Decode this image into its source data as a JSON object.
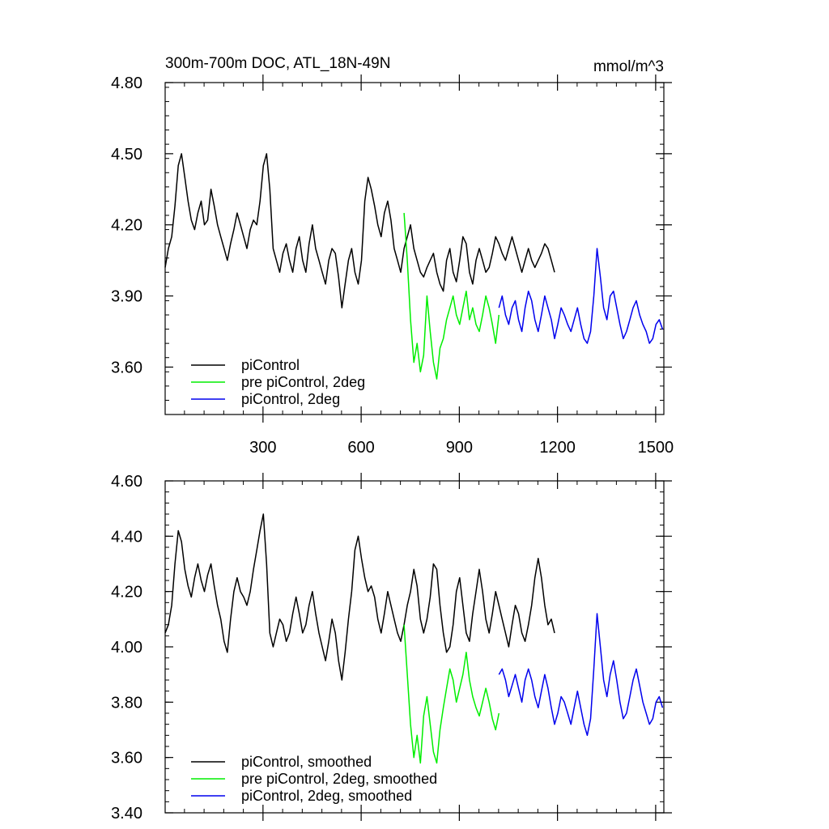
{
  "figure": {
    "title_left": "300m-700m DOC, ATL_18N-49N",
    "title_right": "mmol/m^3"
  },
  "chart_data": [
    {
      "type": "line",
      "panel": "top",
      "title": "300m-700m DOC, ATL_18N-49N",
      "units_label": "mmol/m^3",
      "xlim": [
        1,
        1525
      ],
      "ylim": [
        3.4,
        4.8
      ],
      "x_ticks": [
        300,
        600,
        900,
        1200,
        1500
      ],
      "x_tick_labels": [
        "300",
        "600",
        "900",
        "1200",
        "1500"
      ],
      "y_ticks": [
        3.6,
        3.9,
        4.2,
        4.5,
        4.8
      ],
      "y_tick_labels": [
        "3.60",
        "3.90",
        "4.20",
        "4.50",
        "4.80"
      ],
      "legend_position": "bottom-left",
      "series": [
        {
          "name": "piControl",
          "color": "#000000",
          "x_start": 1,
          "x_step": 10,
          "values": [
            4.02,
            4.1,
            4.15,
            4.28,
            4.45,
            4.5,
            4.4,
            4.3,
            4.22,
            4.18,
            4.25,
            4.3,
            4.2,
            4.22,
            4.35,
            4.28,
            4.2,
            4.15,
            4.1,
            4.05,
            4.12,
            4.18,
            4.25,
            4.2,
            4.15,
            4.1,
            4.18,
            4.22,
            4.2,
            4.3,
            4.45,
            4.5,
            4.35,
            4.1,
            4.05,
            4.0,
            4.08,
            4.12,
            4.05,
            4.0,
            4.1,
            4.15,
            4.05,
            4.0,
            4.12,
            4.2,
            4.1,
            4.05,
            4.0,
            3.95,
            4.05,
            4.1,
            4.08,
            3.98,
            3.85,
            3.95,
            4.05,
            4.1,
            4.0,
            3.95,
            4.05,
            4.3,
            4.4,
            4.35,
            4.28,
            4.2,
            4.15,
            4.25,
            4.3,
            4.22,
            4.1,
            4.05,
            4.0,
            4.1,
            4.15,
            4.2,
            4.1,
            4.05,
            4.0,
            3.98,
            4.02,
            4.05,
            4.08,
            4.0,
            3.95,
            3.92,
            4.05,
            4.1,
            4.0,
            3.96,
            4.05,
            4.15,
            4.12,
            4.0,
            3.95,
            4.05,
            4.1,
            4.05,
            4.0,
            4.02,
            4.08,
            4.15,
            4.12,
            4.08,
            4.05,
            4.1,
            4.15,
            4.1,
            4.05,
            4.0,
            4.05,
            4.1,
            4.05,
            4.02,
            4.05,
            4.08,
            4.12,
            4.1,
            4.05,
            4.0
          ]
        },
        {
          "name": "pre piControl, 2deg",
          "color": "#00ee00",
          "x_start": 731,
          "x_step": 10,
          "values": [
            4.25,
            4.05,
            3.8,
            3.62,
            3.7,
            3.58,
            3.65,
            3.9,
            3.75,
            3.62,
            3.55,
            3.68,
            3.72,
            3.8,
            3.85,
            3.9,
            3.82,
            3.78,
            3.85,
            3.92,
            3.8,
            3.85,
            3.78,
            3.75,
            3.82,
            3.9,
            3.85,
            3.78,
            3.7,
            3.82
          ]
        },
        {
          "name": "piControl, 2deg",
          "color": "#0000ee",
          "x_start": 1021,
          "x_step": 10,
          "values": [
            3.85,
            3.9,
            3.82,
            3.78,
            3.85,
            3.88,
            3.8,
            3.75,
            3.85,
            3.92,
            3.88,
            3.8,
            3.75,
            3.82,
            3.9,
            3.85,
            3.8,
            3.72,
            3.78,
            3.85,
            3.82,
            3.78,
            3.75,
            3.8,
            3.85,
            3.78,
            3.72,
            3.7,
            3.75,
            3.9,
            4.1,
            3.98,
            3.85,
            3.8,
            3.9,
            3.92,
            3.85,
            3.78,
            3.72,
            3.75,
            3.8,
            3.85,
            3.88,
            3.82,
            3.78,
            3.75,
            3.7,
            3.72,
            3.78,
            3.8,
            3.76
          ]
        }
      ]
    },
    {
      "type": "line",
      "panel": "bottom",
      "xlim": [
        1,
        1525
      ],
      "ylim": [
        3.4,
        4.6
      ],
      "x_ticks": [
        300,
        600,
        900,
        1200,
        1500
      ],
      "y_ticks": [
        3.4,
        3.6,
        3.8,
        4.0,
        4.2,
        4.4,
        4.6
      ],
      "y_tick_labels": [
        "3.40",
        "3.60",
        "3.80",
        "4.00",
        "4.20",
        "4.40",
        "4.60"
      ],
      "legend_position": "bottom-left",
      "series": [
        {
          "name": "piControl, smoothed",
          "color": "#000000",
          "x_start": 1,
          "x_step": 10,
          "values": [
            4.05,
            4.08,
            4.15,
            4.3,
            4.42,
            4.38,
            4.28,
            4.22,
            4.18,
            4.25,
            4.3,
            4.24,
            4.2,
            4.26,
            4.3,
            4.22,
            4.15,
            4.1,
            4.02,
            3.98,
            4.1,
            4.2,
            4.25,
            4.2,
            4.18,
            4.15,
            4.2,
            4.28,
            4.35,
            4.42,
            4.48,
            4.3,
            4.05,
            4.0,
            4.05,
            4.1,
            4.08,
            4.02,
            4.05,
            4.12,
            4.18,
            4.12,
            4.05,
            4.08,
            4.15,
            4.2,
            4.12,
            4.05,
            4.0,
            3.95,
            4.02,
            4.1,
            4.05,
            3.95,
            3.88,
            3.98,
            4.1,
            4.2,
            4.35,
            4.4,
            4.32,
            4.25,
            4.2,
            4.22,
            4.18,
            4.1,
            4.05,
            4.12,
            4.2,
            4.15,
            4.1,
            4.05,
            4.02,
            4.08,
            4.15,
            4.2,
            4.28,
            4.22,
            4.1,
            4.05,
            4.1,
            4.18,
            4.3,
            4.28,
            4.15,
            4.05,
            3.98,
            4.0,
            4.08,
            4.2,
            4.25,
            4.15,
            4.05,
            4.02,
            4.12,
            4.2,
            4.28,
            4.2,
            4.1,
            4.05,
            4.12,
            4.2,
            4.15,
            4.1,
            4.05,
            4.0,
            4.08,
            4.15,
            4.12,
            4.05,
            4.02,
            4.08,
            4.15,
            4.25,
            4.32,
            4.25,
            4.15,
            4.08,
            4.1,
            4.05
          ]
        },
        {
          "name": "pre piControl, 2deg, smoothed",
          "color": "#00ee00",
          "x_start": 731,
          "x_step": 10,
          "values": [
            4.08,
            3.9,
            3.72,
            3.6,
            3.68,
            3.58,
            3.75,
            3.82,
            3.72,
            3.62,
            3.58,
            3.7,
            3.78,
            3.85,
            3.92,
            3.88,
            3.8,
            3.85,
            3.9,
            3.98,
            3.88,
            3.82,
            3.78,
            3.75,
            3.8,
            3.85,
            3.8,
            3.74,
            3.7,
            3.76
          ]
        },
        {
          "name": "piControl, 2deg, smoothed",
          "color": "#0000ee",
          "x_start": 1021,
          "x_step": 10,
          "values": [
            3.9,
            3.92,
            3.88,
            3.82,
            3.86,
            3.9,
            3.85,
            3.8,
            3.88,
            3.92,
            3.88,
            3.82,
            3.78,
            3.84,
            3.9,
            3.85,
            3.78,
            3.72,
            3.76,
            3.82,
            3.8,
            3.76,
            3.72,
            3.78,
            3.84,
            3.78,
            3.72,
            3.68,
            3.74,
            3.92,
            4.12,
            4.0,
            3.88,
            3.82,
            3.9,
            3.95,
            3.88,
            3.8,
            3.74,
            3.76,
            3.82,
            3.88,
            3.92,
            3.86,
            3.8,
            3.76,
            3.72,
            3.74,
            3.8,
            3.82,
            3.78
          ]
        }
      ]
    }
  ]
}
